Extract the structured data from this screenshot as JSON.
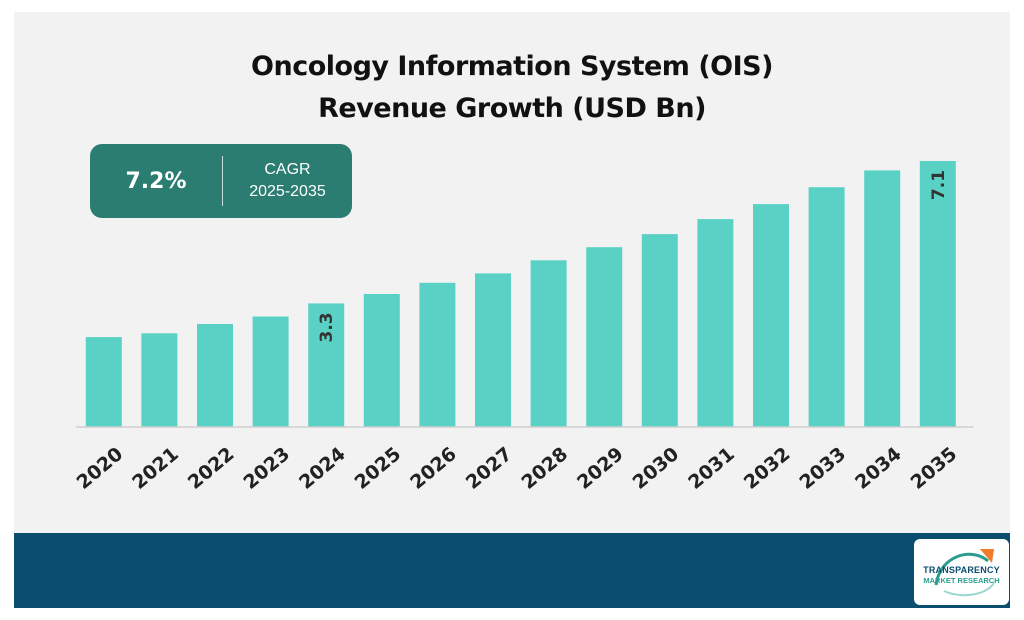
{
  "chart_data": {
    "type": "bar",
    "title": [
      "Oncology Information System (OIS)",
      "Revenue Growth (USD Bn)"
    ],
    "categories": [
      "2020",
      "2021",
      "2022",
      "2023",
      "2024",
      "2025",
      "2026",
      "2027",
      "2028",
      "2029",
      "2030",
      "2031",
      "2032",
      "2033",
      "2034",
      "2035"
    ],
    "values": [
      2.4,
      2.5,
      2.75,
      2.95,
      3.3,
      3.55,
      3.85,
      4.1,
      4.45,
      4.8,
      5.15,
      5.55,
      5.95,
      6.4,
      6.85,
      7.1
    ],
    "data_labels": [
      {
        "category": "2024",
        "text": "3.3"
      },
      {
        "category": "2035",
        "text": "7.1"
      }
    ],
    "ylim": [
      0,
      7.1
    ],
    "grid": false,
    "legend": "none",
    "bar_color": "#5ad1c5",
    "axis_color": "#d0d0d0"
  },
  "cagr": {
    "value": "7.2%",
    "label": "CAGR",
    "period": "2025-2035",
    "color": "#2a7d70"
  },
  "footer": {
    "color": "#0b4d6f",
    "logo": {
      "line1": "TRANSPARENCY",
      "line2": "MARKET RESEARCH"
    }
  }
}
